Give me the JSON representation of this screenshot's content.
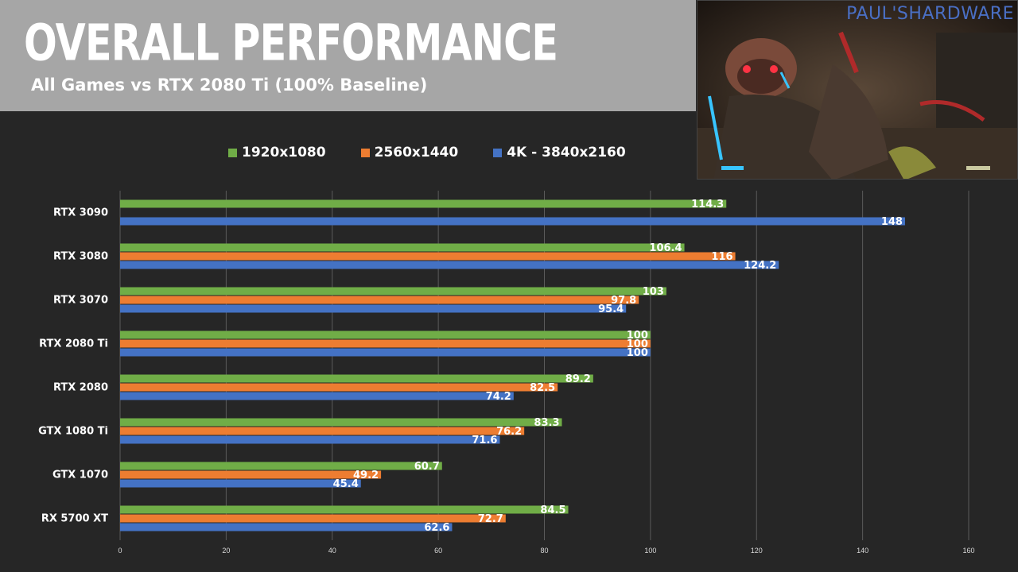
{
  "header": {
    "title": "OVERALL PERFORMANCE",
    "subtitle": "All Games vs RTX 2080 Ti (100% Baseline)"
  },
  "inset": {
    "brand": "PAUL'SHARDWARE"
  },
  "colors": {
    "green": "#70ad47",
    "orange": "#ed7d31",
    "blue": "#4472c4",
    "background": "#262626",
    "header_band": "#a6a6a6"
  },
  "chart_data": {
    "type": "bar",
    "orientation": "horizontal",
    "categories": [
      "RTX 3090",
      "RTX 3080",
      "RTX 3070",
      "RTX 2080 Ti",
      "RTX 2080",
      "GTX 1080 Ti",
      "GTX 1070",
      "RX 5700 XT"
    ],
    "series": [
      {
        "name": "1920x1080",
        "color": "#70ad47",
        "values": [
          114.3,
          106.4,
          103,
          100,
          89.2,
          83.3,
          60.7,
          84.5
        ],
        "labels": [
          "114.3",
          "106.4",
          "103",
          "100",
          "89.2",
          "83.3",
          "60.7",
          "84.5"
        ]
      },
      {
        "name": "2560x1440",
        "color": "#ed7d31",
        "values": [
          null,
          116,
          97.8,
          100,
          82.5,
          76.2,
          49.2,
          72.7
        ],
        "labels": [
          null,
          "116",
          "97.8",
          "100",
          "82.5",
          "76.2",
          "49.2",
          "72.7"
        ]
      },
      {
        "name": "4K - 3840x2160",
        "color": "#4472c4",
        "values": [
          148,
          124.2,
          95.4,
          100,
          74.2,
          71.6,
          45.4,
          62.6
        ],
        "labels": [
          "148",
          "124.2",
          "95.4",
          "100",
          "74.2",
          "71.6",
          "45.4",
          "62.6"
        ]
      }
    ],
    "xlim": [
      0,
      160
    ],
    "xticks": [
      0,
      20,
      40,
      60,
      80,
      100,
      120,
      140,
      160
    ],
    "xtick_labels": [
      "0",
      "20",
      "40",
      "60",
      "80",
      "100",
      "120",
      "140",
      "160"
    ],
    "grid": true,
    "legend_position": "top"
  }
}
